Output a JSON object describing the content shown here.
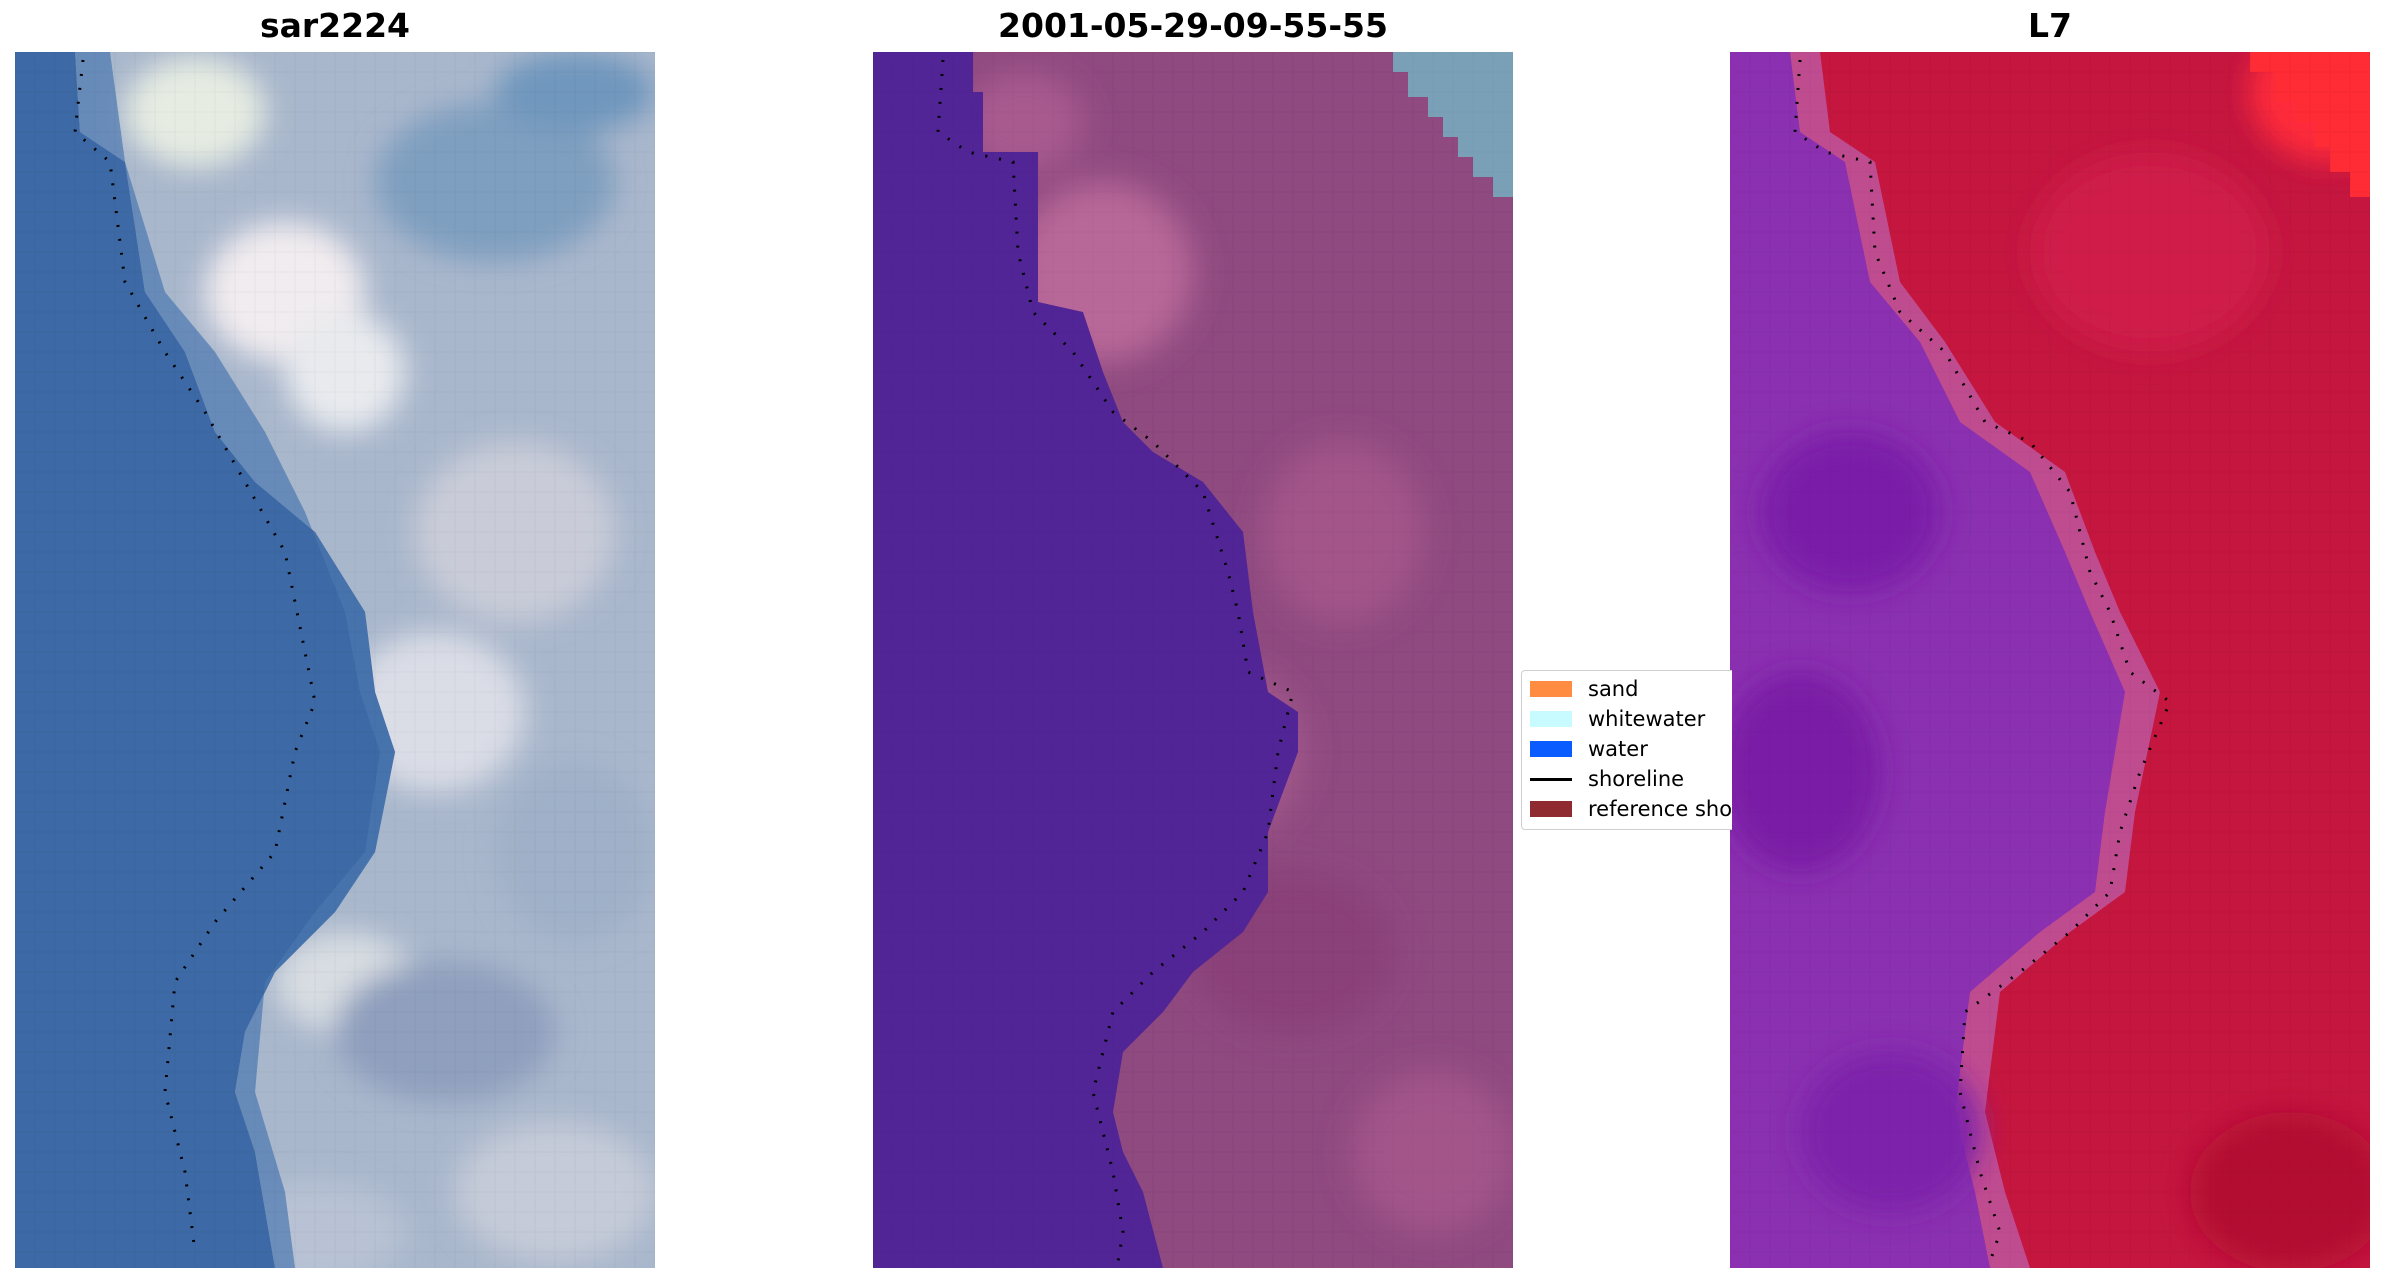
{
  "panels": [
    {
      "title": "sar2224",
      "image": "rgb-satellite-image"
    },
    {
      "title": "2001-05-29-09-55-55",
      "image": "classified-image"
    },
    {
      "title": "L7",
      "image": "mndwi-image"
    }
  ],
  "legend": {
    "items": [
      {
        "label": "sand",
        "color": "#ff8c40",
        "kind": "patch"
      },
      {
        "label": "whitewater",
        "color": "#c8fbff",
        "kind": "patch"
      },
      {
        "label": "water",
        "color": "#0a5cff",
        "kind": "patch"
      },
      {
        "label": "shoreline",
        "color": "#000000",
        "kind": "line"
      },
      {
        "label": "reference shoreline",
        "color": "#8e2a30",
        "kind": "patch"
      }
    ]
  },
  "colors": {
    "water_blue": "#3f6ea6",
    "land_grey": "#a9b7cc",
    "classified_water": "#522596",
    "classified_land": "#8f4a80",
    "index_water": "#8a30b0",
    "index_land": "#c4163f"
  }
}
